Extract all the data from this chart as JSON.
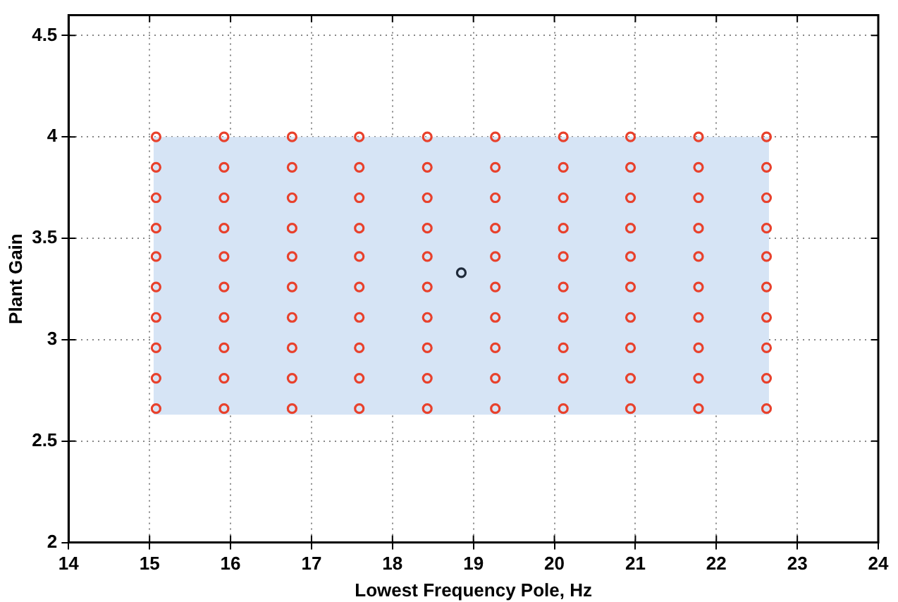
{
  "chart_data": {
    "type": "scatter",
    "xlabel": "Lowest Frequency Pole, Hz",
    "ylabel": "Plant Gain",
    "xlim": [
      14,
      24
    ],
    "xticks": [
      14,
      15,
      16,
      17,
      18,
      19,
      20,
      21,
      22,
      23,
      24
    ],
    "ylim": [
      2,
      4.6
    ],
    "yticks": [
      2,
      2.5,
      3,
      3.5,
      4,
      4.5
    ],
    "grid": true,
    "legend": false,
    "series": [
      {
        "type": "line",
        "marker": "none",
        "color": "#d6e4f5",
        "x": [
          15.05,
          22.65
        ],
        "values": [
          null,
          null
        ],
        "lower": [
          2.63,
          2.63
        ],
        "upper": [
          4.0,
          4.0
        ]
      },
      {
        "type": "scatter",
        "marker": "circle",
        "color": "#e8412c",
        "x": [
          15.08,
          15.08,
          15.08,
          15.08,
          15.08,
          15.08,
          15.08,
          15.08,
          15.08,
          15.08,
          15.92,
          15.92,
          15.92,
          15.92,
          15.92,
          15.92,
          15.92,
          15.92,
          15.92,
          15.92,
          16.76,
          16.76,
          16.76,
          16.76,
          16.76,
          16.76,
          16.76,
          16.76,
          16.76,
          16.76,
          17.59,
          17.59,
          17.59,
          17.59,
          17.59,
          17.59,
          17.59,
          17.59,
          17.59,
          17.59,
          18.43,
          18.43,
          18.43,
          18.43,
          18.43,
          18.43,
          18.43,
          18.43,
          18.43,
          18.43,
          19.27,
          19.27,
          19.27,
          19.27,
          19.27,
          19.27,
          19.27,
          19.27,
          19.27,
          19.27,
          20.11,
          20.11,
          20.11,
          20.11,
          20.11,
          20.11,
          20.11,
          20.11,
          20.11,
          20.11,
          20.94,
          20.94,
          20.94,
          20.94,
          20.94,
          20.94,
          20.94,
          20.94,
          20.94,
          20.94,
          21.78,
          21.78,
          21.78,
          21.78,
          21.78,
          21.78,
          21.78,
          21.78,
          21.78,
          21.78,
          22.62,
          22.62,
          22.62,
          22.62,
          22.62,
          22.62,
          22.62,
          22.62,
          22.62,
          22.62
        ],
        "values": [
          4.0,
          3.85,
          3.7,
          3.55,
          3.41,
          3.26,
          3.11,
          2.96,
          2.81,
          2.66,
          4.0,
          3.85,
          3.7,
          3.55,
          3.41,
          3.26,
          3.11,
          2.96,
          2.81,
          2.66,
          4.0,
          3.85,
          3.7,
          3.55,
          3.41,
          3.26,
          3.11,
          2.96,
          2.81,
          2.66,
          4.0,
          3.85,
          3.7,
          3.55,
          3.41,
          3.26,
          3.11,
          2.96,
          2.81,
          2.66,
          4.0,
          3.85,
          3.7,
          3.55,
          3.41,
          3.26,
          3.11,
          2.96,
          2.81,
          2.66,
          4.0,
          3.85,
          3.7,
          3.55,
          3.41,
          3.26,
          3.11,
          2.96,
          2.81,
          2.66,
          4.0,
          3.85,
          3.7,
          3.55,
          3.41,
          3.26,
          3.11,
          2.96,
          2.81,
          2.66,
          4.0,
          3.85,
          3.7,
          3.55,
          3.41,
          3.26,
          3.11,
          2.96,
          2.81,
          2.66,
          4.0,
          3.85,
          3.7,
          3.55,
          3.41,
          3.26,
          3.11,
          2.96,
          2.81,
          2.66,
          4.0,
          3.85,
          3.7,
          3.55,
          3.41,
          3.26,
          3.11,
          2.96,
          2.81,
          2.66
        ]
      },
      {
        "type": "scatter",
        "marker": "circle",
        "color": "#1f2a3a",
        "x": [
          18.85
        ],
        "values": [
          3.33
        ]
      }
    ]
  }
}
